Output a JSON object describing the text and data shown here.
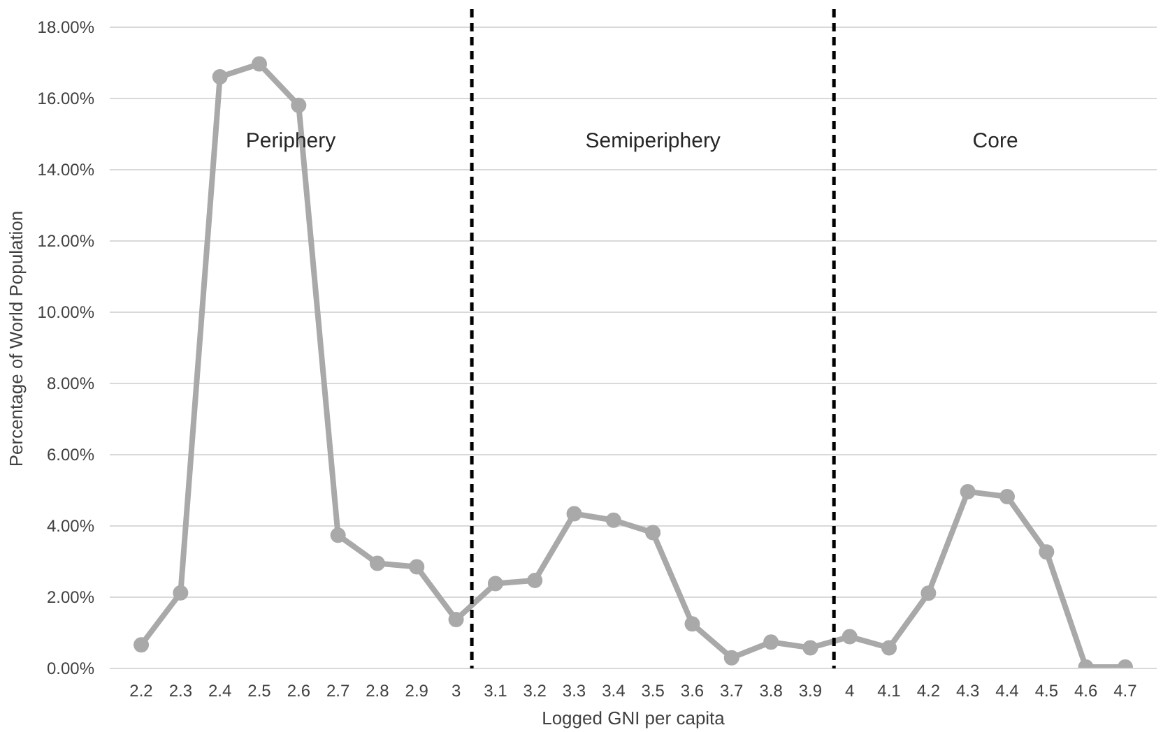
{
  "chart_data": {
    "type": "line",
    "xlabel": "Logged GNI per capita",
    "ylabel": "Percentage of World Population",
    "x": [
      2.2,
      2.3,
      2.4,
      2.5,
      2.6,
      2.7,
      2.8,
      2.9,
      3.0,
      3.1,
      3.2,
      3.3,
      3.4,
      3.5,
      3.6,
      3.7,
      3.8,
      3.9,
      4.0,
      4.1,
      4.2,
      4.3,
      4.4,
      4.5,
      4.6,
      4.7
    ],
    "series": [
      {
        "color": "#a9a9a9",
        "values": [
          0.66,
          2.12,
          16.6,
          16.96,
          15.8,
          3.74,
          2.95,
          2.85,
          1.37,
          2.38,
          2.47,
          4.34,
          4.16,
          3.81,
          1.25,
          0.3,
          0.74,
          0.58,
          0.89,
          0.58,
          2.11,
          4.96,
          4.82,
          3.27,
          0.04,
          0.04
        ]
      }
    ],
    "xlim": [
      2.12,
      4.78
    ],
    "ylim": [
      0,
      18.5
    ],
    "xticks": [
      2.2,
      2.3,
      2.4,
      2.5,
      2.6,
      2.7,
      2.8,
      2.9,
      3,
      3.1,
      3.2,
      3.3,
      3.4,
      3.5,
      3.6,
      3.7,
      3.8,
      3.9,
      4,
      4.1,
      4.2,
      4.3,
      4.4,
      4.5,
      4.6,
      4.7
    ],
    "yticks": [
      {
        "value": 0,
        "label": "0.00%"
      },
      {
        "value": 2,
        "label": "2.00%"
      },
      {
        "value": 4,
        "label": "4.00%"
      },
      {
        "value": 6,
        "label": "6.00%"
      },
      {
        "value": 8,
        "label": "8.00%"
      },
      {
        "value": 10,
        "label": "10.00%"
      },
      {
        "value": 12,
        "label": "12.00%"
      },
      {
        "value": 14,
        "label": "14.00%"
      },
      {
        "value": 16,
        "label": "16.00%"
      },
      {
        "value": 18,
        "label": "18.00%"
      }
    ],
    "ref_lines": [
      {
        "axis": "x",
        "value": 3.04,
        "color": "#000000",
        "line_style": "dashed"
      },
      {
        "axis": "x",
        "value": 3.96,
        "color": "#000000",
        "line_style": "dashed"
      }
    ],
    "annotations": [
      "Periphery",
      "Semiperiphery",
      "Core"
    ],
    "grid": "y",
    "marker": "circle",
    "line_style": "solid"
  }
}
